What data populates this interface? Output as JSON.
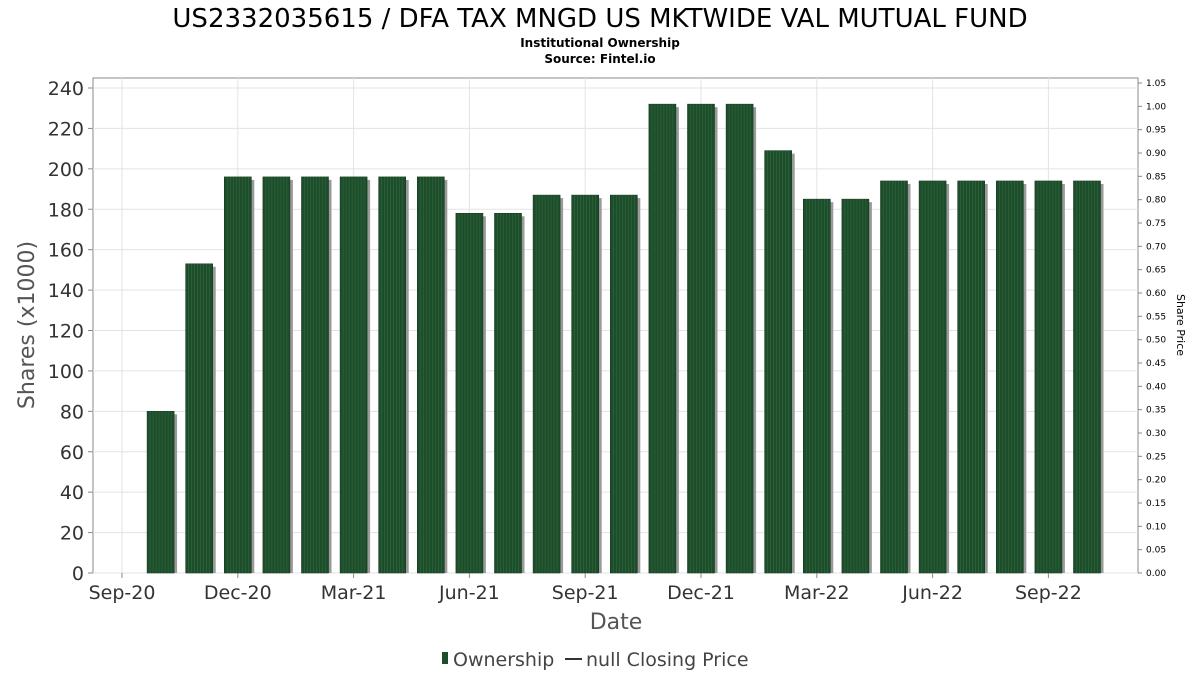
{
  "chart_data": {
    "type": "bar",
    "title": "US2332035615 / DFA TAX MNGD US MKTWIDE VAL MUTUAL FUND",
    "subtitle": "Institutional Ownership",
    "source": "Source: Fintel.io",
    "xlabel": "Date",
    "ylabel": "Shares (x1000)",
    "ylabel_right": "Share Price",
    "ylim": [
      0,
      240
    ],
    "ylim_right": [
      0,
      1.05
    ],
    "yticks": [
      0,
      20,
      40,
      60,
      80,
      100,
      120,
      140,
      160,
      180,
      200,
      220,
      240
    ],
    "yticks_right": [
      "0.00",
      "0.05",
      "0.10",
      "0.15",
      "0.20",
      "0.25",
      "0.30",
      "0.35",
      "0.40",
      "0.45",
      "0.50",
      "0.55",
      "0.60",
      "0.65",
      "0.70",
      "0.75",
      "0.80",
      "0.85",
      "0.90",
      "0.95",
      "1.00",
      "1.05"
    ],
    "xticks": [
      "Sep-20",
      "Dec-20",
      "Mar-21",
      "Jun-21",
      "Sep-21",
      "Dec-21",
      "Mar-22",
      "Jun-22",
      "Sep-22"
    ],
    "x_months": [
      "Sep-20",
      "Oct-20",
      "Nov-20",
      "Dec-20",
      "Jan-21",
      "Feb-21",
      "Mar-21",
      "Apr-21",
      "May-21",
      "Jun-21",
      "Jul-21",
      "Aug-21",
      "Sep-21",
      "Oct-21",
      "Nov-21",
      "Dec-21",
      "Jan-22",
      "Feb-22",
      "Mar-22",
      "Apr-22",
      "May-22",
      "Jun-22",
      "Jul-22",
      "Aug-22",
      "Sep-22",
      "Oct-22"
    ],
    "grid": true,
    "legend_position": "bottom",
    "series": [
      {
        "name": "Ownership",
        "color": "#1e4d2b",
        "x": [
          "Oct-20",
          "Nov-20",
          "Dec-20",
          "Jan-21",
          "Feb-21",
          "Mar-21",
          "Apr-21",
          "May-21",
          "Jun-21",
          "Jul-21",
          "Aug-21",
          "Sep-21",
          "Oct-21",
          "Nov-21",
          "Dec-21",
          "Jan-22",
          "Feb-22",
          "Mar-22",
          "Apr-22",
          "May-22",
          "Jun-22",
          "Jul-22",
          "Aug-22",
          "Sep-22",
          "Oct-22"
        ],
        "values": [
          80,
          153,
          196,
          196,
          196,
          196,
          196,
          196,
          178,
          178,
          187,
          187,
          187,
          232,
          232,
          232,
          209,
          185,
          185,
          194,
          194,
          194,
          194,
          194,
          194
        ]
      },
      {
        "name": "null Closing Price",
        "color": "#333333",
        "values": []
      }
    ]
  }
}
